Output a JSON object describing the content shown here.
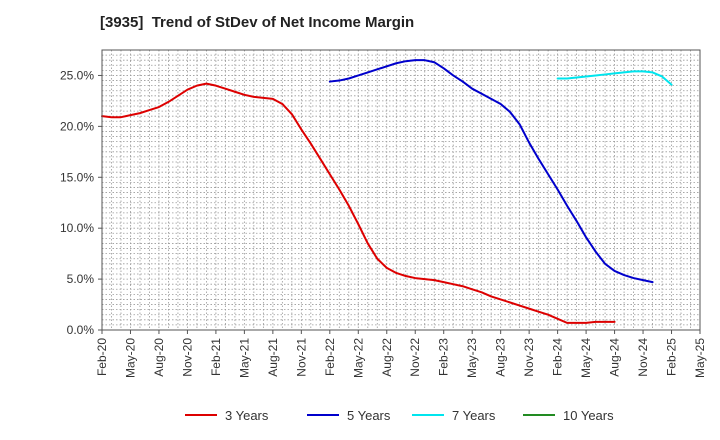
{
  "chart_data": {
    "type": "line",
    "title": "[3935]  Trend of StDev of Net Income Margin",
    "xlabel": "",
    "ylabel": "",
    "ylim": [
      0,
      0.275
    ],
    "y_ticks": [
      0,
      0.05,
      0.1,
      0.15,
      0.2,
      0.25
    ],
    "y_tick_labels": [
      "0.0%",
      "5.0%",
      "10.0%",
      "15.0%",
      "20.0%",
      "25.0%"
    ],
    "x_tick_labels": [
      "Feb-20",
      "May-20",
      "Aug-20",
      "Nov-20",
      "Feb-21",
      "May-21",
      "Aug-21",
      "Nov-21",
      "Feb-22",
      "May-22",
      "Aug-22",
      "Nov-22",
      "Feb-23",
      "May-23",
      "Aug-23",
      "Nov-23",
      "Feb-24",
      "May-24",
      "Aug-24",
      "Nov-24",
      "Feb-25",
      "May-25"
    ],
    "x_start": "2020-02",
    "grid": true,
    "legend_position": "bottom",
    "series": [
      {
        "name": "3 Years",
        "color": "#dd0000",
        "start": "2020-02",
        "values": [
          0.21,
          0.209,
          0.209,
          0.211,
          0.213,
          0.216,
          0.219,
          0.224,
          0.23,
          0.236,
          0.24,
          0.242,
          0.24,
          0.237,
          0.234,
          0.231,
          0.229,
          0.228,
          0.227,
          0.222,
          0.212,
          0.197,
          0.183,
          0.168,
          0.153,
          0.138,
          0.122,
          0.104,
          0.085,
          0.07,
          0.061,
          0.056,
          0.053,
          0.051,
          0.05,
          0.049,
          0.047,
          0.045,
          0.043,
          0.04,
          0.037,
          0.033,
          0.03,
          0.027,
          0.024,
          0.021,
          0.018,
          0.015,
          0.011,
          0.007,
          0.007,
          0.007,
          0.008,
          0.008,
          0.008
        ]
      },
      {
        "name": "5 Years",
        "color": "#0000cc",
        "start": "2022-02",
        "values": [
          0.244,
          0.245,
          0.247,
          0.25,
          0.253,
          0.256,
          0.259,
          0.262,
          0.264,
          0.265,
          0.265,
          0.263,
          0.257,
          0.25,
          0.244,
          0.237,
          0.232,
          0.227,
          0.222,
          0.214,
          0.202,
          0.184,
          0.168,
          0.153,
          0.138,
          0.122,
          0.107,
          0.091,
          0.077,
          0.065,
          0.058,
          0.054,
          0.051,
          0.049,
          0.047
        ]
      },
      {
        "name": "7 Years",
        "color": "#00e5ee",
        "start": "2024-02",
        "values": [
          0.247,
          0.247,
          0.248,
          0.249,
          0.25,
          0.251,
          0.252,
          0.253,
          0.254,
          0.254,
          0.253,
          0.249,
          0.241
        ]
      },
      {
        "name": "10 Years",
        "color": "#228B22",
        "start": "2025-02",
        "values": []
      }
    ]
  }
}
